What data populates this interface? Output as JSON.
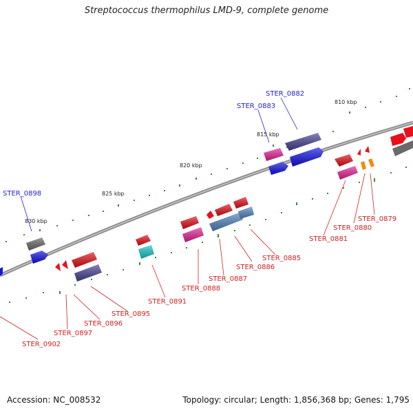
{
  "title": "Streptococcus thermophilus LMD-9, complete genome",
  "footer": {
    "accession": "Accession: NC_008532",
    "topology": "Topology: circular; Length: 1,856,368 bp; Genes: 1,795"
  },
  "colors": {
    "backbone": "#8a8a8a",
    "tick": "#2e8b2e",
    "label_forward": "#1f1fd0",
    "label_reverse": "#d02020",
    "gene_red": "#e8101a",
    "gene_blue": "#1414e6",
    "gene_navy": "#4a4496",
    "gene_magenta": "#e8249a",
    "gene_gray": "#6a6a6a",
    "gene_cyan": "#1ec6c6",
    "gene_steel": "#5588c0",
    "gene_orange": "#f08a10"
  },
  "scale_labels": [
    "810 kbp",
    "815 kbp",
    "820 kbp",
    "825 kbp",
    "830 kbp"
  ],
  "gene_labels": {
    "forward": [
      "STER_0882",
      "STER_0883",
      "STER_0898"
    ],
    "reverse": [
      "STER_0879",
      "STER_0880",
      "STER_0881",
      "STER_0885",
      "STER_0886",
      "STER_0887",
      "STER_0888",
      "STER_0891",
      "STER_0895",
      "STER_0896",
      "STER_0897",
      "STER_0902"
    ]
  }
}
